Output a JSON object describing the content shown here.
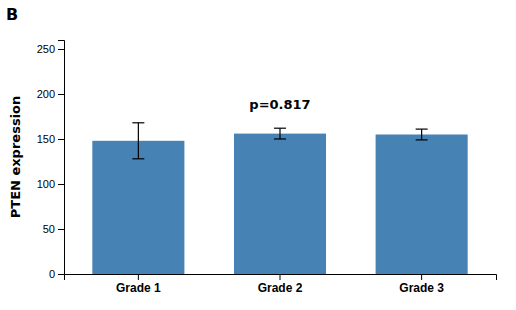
{
  "chart_data": {
    "type": "bar",
    "title": "B",
    "ylabel": "PTEN expression",
    "annotation": "p=0.817",
    "categories": [
      "Grade 1",
      "Grade 2",
      "Grade 3"
    ],
    "values": [
      148,
      156,
      155
    ],
    "errors": [
      20,
      6,
      6
    ],
    "ylim": [
      0,
      260
    ],
    "yticks": [
      0,
      50,
      100,
      150,
      200,
      250
    ],
    "grid": false
  }
}
